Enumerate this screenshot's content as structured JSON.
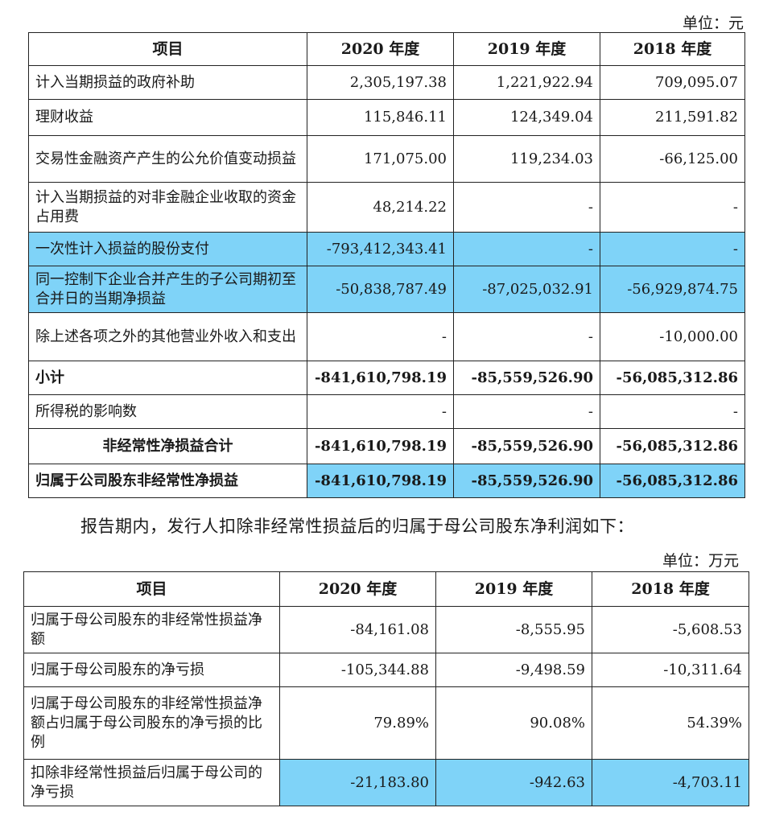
{
  "unit1": "单位：元",
  "table1": {
    "headers": [
      "项目",
      "2020 年度",
      "2019 年度",
      "2018 年度"
    ],
    "rows": [
      {
        "label": "计入当期损益的政府补助",
        "v2020": "2,305,197.38",
        "v2019": "1,221,922.94",
        "v2018": "709,095.07"
      },
      {
        "label": "理财收益",
        "v2020": "115,846.11",
        "v2019": "124,349.04",
        "v2018": "211,591.82"
      },
      {
        "label": "交易性金融资产产生的公允价值变动损益",
        "v2020": "171,075.00",
        "v2019": "119,234.03",
        "v2018": "-66,125.00"
      },
      {
        "label": "计入当期损益的对非金融企业收取的资金占用费",
        "v2020": "48,214.22",
        "v2019": "-",
        "v2018": "-"
      },
      {
        "label": "一次性计入损益的股份支付",
        "v2020": "-793,412,343.41",
        "v2019": "-",
        "v2018": "-"
      },
      {
        "label": "同一控制下企业合并产生的子公司期初至合并日的当期净损益",
        "v2020": "-50,838,787.49",
        "v2019": "-87,025,032.91",
        "v2018": "-56,929,874.75"
      },
      {
        "label": "除上述各项之外的其他营业外收入和支出",
        "v2020": "-",
        "v2019": "-",
        "v2018": "-10,000.00"
      },
      {
        "label": "小计",
        "v2020": "-841,610,798.19",
        "v2019": "-85,559,526.90",
        "v2018": "-56,085,312.86"
      },
      {
        "label": "所得税的影响数",
        "v2020": "-",
        "v2019": "-",
        "v2018": "-"
      },
      {
        "label": "非经常性净损益合计",
        "v2020": "-841,610,798.19",
        "v2019": "-85,559,526.90",
        "v2018": "-56,085,312.86"
      },
      {
        "label": "归属于公司股东非经常性净损益",
        "v2020": "-841,610,798.19",
        "v2019": "-85,559,526.90",
        "v2018": "-56,085,312.86"
      }
    ]
  },
  "note": "报告期内，发行人扣除非经常性损益后的归属于母公司股东净利润如下：",
  "unit2": "单位：万元",
  "table2": {
    "headers": [
      "项目",
      "2020 年度",
      "2019 年度",
      "2018 年度"
    ],
    "rows": [
      {
        "label": "归属于母公司股东的非经常性损益净额",
        "v2020": "-84,161.08",
        "v2019": "-8,555.95",
        "v2018": "-5,608.53"
      },
      {
        "label": "归属于母公司股东的净亏损",
        "v2020": "-105,344.88",
        "v2019": "-9,498.59",
        "v2018": "-10,311.64"
      },
      {
        "label": "归属于母公司股东的非经常性损益净额占归属于母公司股东的净亏损的比例",
        "v2020": "79.89%",
        "v2019": "90.08%",
        "v2018": "54.39%"
      },
      {
        "label": "扣除非经常性损益后归属于母公司的净亏损",
        "v2020": "-21,183.80",
        "v2019": "-942.63",
        "v2018": "-4,703.11"
      }
    ]
  },
  "highlight_color": "#7fd3f8"
}
